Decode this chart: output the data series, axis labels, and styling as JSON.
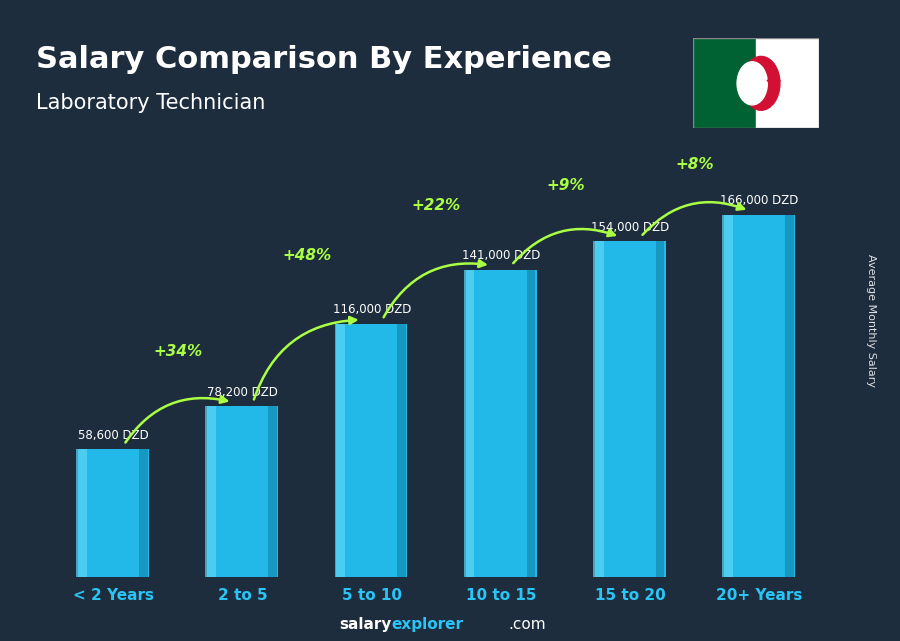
{
  "title": "Salary Comparison By Experience",
  "subtitle": "Laboratory Technician",
  "categories": [
    "< 2 Years",
    "2 to 5",
    "5 to 10",
    "10 to 15",
    "15 to 20",
    "20+ Years"
  ],
  "values": [
    58600,
    78200,
    116000,
    141000,
    154000,
    166000
  ],
  "value_labels": [
    "58,600 DZD",
    "78,200 DZD",
    "116,000 DZD",
    "141,000 DZD",
    "154,000 DZD",
    "166,000 DZD"
  ],
  "pct_changes": [
    "+34%",
    "+48%",
    "+22%",
    "+9%",
    "+8%"
  ],
  "bar_color_mid": "#22b8e8",
  "bar_color_light": "#5dd5f5",
  "bar_color_dark": "#1590b8",
  "bg_color": "#1e2d3d",
  "title_color": "#ffffff",
  "pct_color": "#aaff44",
  "ylabel": "Average Monthly Salary",
  "footer_salary": "salary",
  "footer_explorer": "explorer",
  "footer_com": ".com",
  "footer_color_bold": "#29c5f6",
  "footer_color_normal": "#ffffff",
  "ylim": [
    0,
    200000
  ]
}
